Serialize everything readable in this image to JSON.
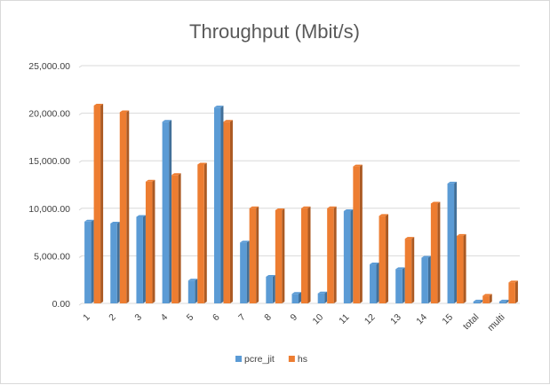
{
  "chart_data": {
    "type": "bar",
    "title": "Throughput (Mbit/s)",
    "xlabel": "",
    "ylabel": "",
    "categories": [
      "1",
      "2",
      "3",
      "4",
      "5",
      "6",
      "7",
      "8",
      "9",
      "10",
      "11",
      "12",
      "13",
      "14",
      "15",
      "total",
      "multi"
    ],
    "series": [
      {
        "name": "pcre_jit",
        "color": "#5b9bd5",
        "values": [
          8600,
          8400,
          9100,
          19100,
          2400,
          20600,
          6400,
          2800,
          1000,
          1050,
          9700,
          4100,
          3600,
          4800,
          12600,
          200,
          200
        ]
      },
      {
        "name": "hs",
        "color": "#ed7d31",
        "values": [
          20800,
          20100,
          12800,
          13500,
          14600,
          19100,
          10000,
          9800,
          10000,
          10000,
          14400,
          9200,
          6800,
          10500,
          7100,
          800,
          2200
        ]
      }
    ],
    "ylim": [
      0,
      25000
    ],
    "yticks": [
      "0.00",
      "5,000.00",
      "10,000.00",
      "15,000.00",
      "20,000.00",
      "25,000.00"
    ],
    "ytick_values": [
      0,
      5000,
      10000,
      15000,
      20000,
      25000
    ],
    "grid": true,
    "legend_position": "bottom"
  }
}
